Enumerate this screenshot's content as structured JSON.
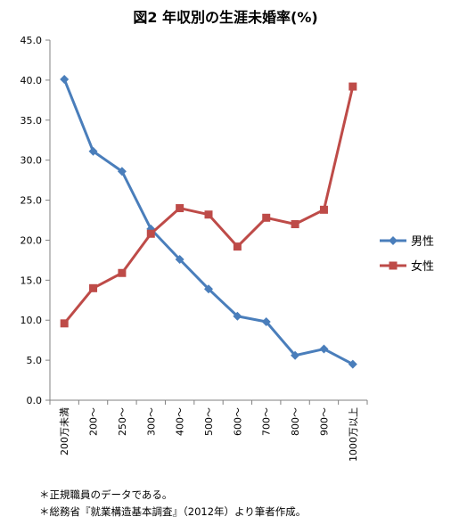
{
  "chart_data": {
    "type": "line",
    "title": "図2 年収別の生涯未婚率(%)",
    "categories": [
      "200万未満",
      "200～",
      "250～",
      "300～",
      "400～",
      "500～",
      "600～",
      "700～",
      "800～",
      "900～",
      "1000万以上"
    ],
    "series": [
      {
        "name": "男性",
        "color": "#4a7ebb",
        "marker": "diamond",
        "values": [
          40.1,
          31.1,
          28.6,
          21.4,
          17.6,
          13.9,
          10.5,
          9.8,
          5.6,
          6.4,
          4.5
        ]
      },
      {
        "name": "女性",
        "color": "#be4b48",
        "marker": "square",
        "values": [
          9.6,
          14.0,
          15.9,
          20.8,
          24.0,
          23.2,
          19.2,
          22.8,
          22.0,
          23.8,
          39.2
        ]
      }
    ],
    "yticks": [
      "0.0",
      "5.0",
      "10.0",
      "15.0",
      "20.0",
      "25.0",
      "30.0",
      "35.0",
      "40.0",
      "45.0"
    ],
    "ylim": [
      0,
      45
    ],
    "grid": false,
    "legend": "right"
  },
  "notes": [
    "＊正規職員のデータである。",
    "＊総務省『就業構造基本調査』（2012年）より筆者作成。"
  ]
}
